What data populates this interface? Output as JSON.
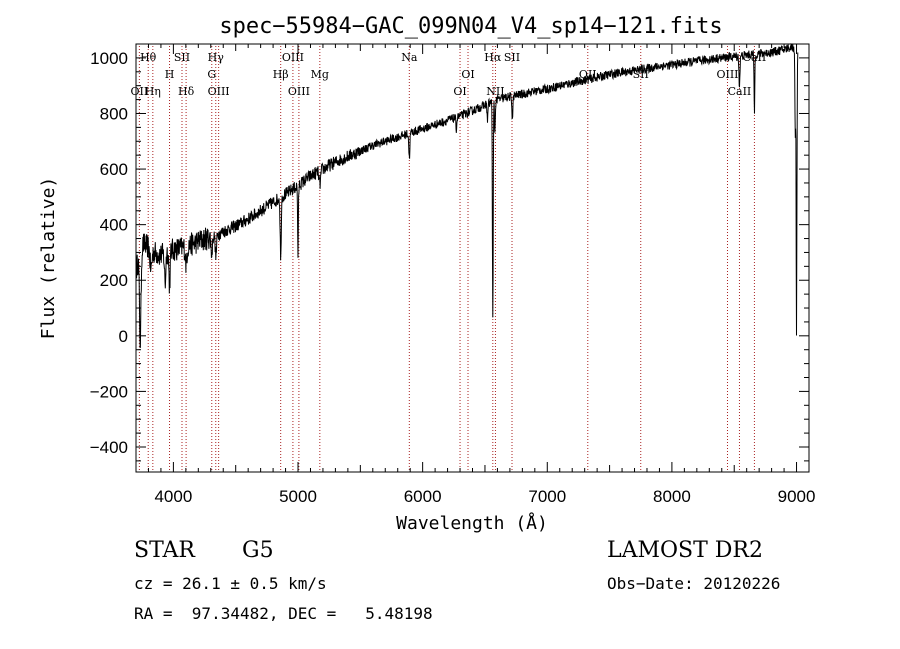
{
  "chart_data": {
    "type": "line",
    "title": "spec−55984−GAC_099N04_V4_sp14−121.fits",
    "xlabel": "Wavelength (Å)",
    "ylabel": "Flux (relative)",
    "xlim": [
      3700,
      9100
    ],
    "ylim": [
      -490,
      1050
    ],
    "x_ticks": [
      4000,
      5000,
      6000,
      7000,
      8000,
      9000
    ],
    "x_tick_labels": [
      "4000",
      "5000",
      "6000",
      "7000",
      "8000",
      "9000"
    ],
    "y_ticks": [
      -400,
      -200,
      0,
      200,
      400,
      600,
      800,
      1000
    ],
    "y_tick_labels": [
      "−400",
      "−200",
      "0",
      "200",
      "400",
      "600",
      "800",
      "1000"
    ],
    "grid": false,
    "line_color": "#000000",
    "marker_color": "#aa2222",
    "spectrum": {
      "continuum": [
        [
          3700,
          230
        ],
        [
          3730,
          300
        ],
        [
          3760,
          330
        ],
        [
          3800,
          320
        ],
        [
          3850,
          300
        ],
        [
          3900,
          290
        ],
        [
          3950,
          300
        ],
        [
          4000,
          310
        ],
        [
          4100,
          320
        ],
        [
          4200,
          340
        ],
        [
          4300,
          355
        ],
        [
          4400,
          375
        ],
        [
          4500,
          395
        ],
        [
          4600,
          420
        ],
        [
          4700,
          450
        ],
        [
          4800,
          480
        ],
        [
          4900,
          510
        ],
        [
          5000,
          540
        ],
        [
          5100,
          575
        ],
        [
          5200,
          600
        ],
        [
          5300,
          625
        ],
        [
          5400,
          645
        ],
        [
          5500,
          665
        ],
        [
          5600,
          685
        ],
        [
          5700,
          700
        ],
        [
          5800,
          715
        ],
        [
          5900,
          730
        ],
        [
          6000,
          745
        ],
        [
          6100,
          760
        ],
        [
          6200,
          775
        ],
        [
          6300,
          790
        ],
        [
          6400,
          810
        ],
        [
          6500,
          830
        ],
        [
          6600,
          850
        ],
        [
          6700,
          860
        ],
        [
          6800,
          870
        ],
        [
          6900,
          880
        ],
        [
          7000,
          888
        ],
        [
          7100,
          900
        ],
        [
          7200,
          910
        ],
        [
          7300,
          920
        ],
        [
          7400,
          930
        ],
        [
          7500,
          940
        ],
        [
          7600,
          948
        ],
        [
          7700,
          955
        ],
        [
          7800,
          962
        ],
        [
          7900,
          970
        ],
        [
          8000,
          975
        ],
        [
          8100,
          982
        ],
        [
          8200,
          988
        ],
        [
          8300,
          995
        ],
        [
          8400,
          1000
        ],
        [
          8500,
          1005
        ],
        [
          8600,
          1010
        ],
        [
          8700,
          1015
        ],
        [
          8800,
          1020
        ],
        [
          8900,
          1030
        ],
        [
          8960,
          1040
        ],
        [
          8990,
          1030
        ]
      ],
      "absorption": [
        {
          "center": 3734,
          "depth": 330,
          "width": 6
        },
        {
          "center": 3820,
          "depth": 70,
          "width": 8
        },
        {
          "center": 3934,
          "depth": 110,
          "width": 5
        },
        {
          "center": 3969,
          "depth": 120,
          "width": 5
        },
        {
          "center": 4102,
          "depth": 60,
          "width": 6
        },
        {
          "center": 4308,
          "depth": 70,
          "width": 5
        },
        {
          "center": 4341,
          "depth": 80,
          "width": 5
        },
        {
          "center": 4861,
          "depth": 230,
          "width": 4
        },
        {
          "center": 5000,
          "depth": 250,
          "width": 3
        },
        {
          "center": 5175,
          "depth": 50,
          "width": 6
        },
        {
          "center": 5893,
          "depth": 90,
          "width": 4
        },
        {
          "center": 6270,
          "depth": 40,
          "width": 4
        },
        {
          "center": 6520,
          "depth": 60,
          "width": 3
        },
        {
          "center": 6563,
          "depth": 800,
          "width": 3
        },
        {
          "center": 6580,
          "depth": 120,
          "width": 3
        },
        {
          "center": 6720,
          "depth": 80,
          "width": 4
        },
        {
          "center": 8542,
          "depth": 110,
          "width": 4
        },
        {
          "center": 8662,
          "depth": 210,
          "width": 3
        },
        {
          "center": 8990,
          "depth": 320,
          "width": 3
        },
        {
          "center": 9000,
          "depth": 1030,
          "width": 3
        }
      ],
      "noise_amplitude": 18
    },
    "lines": [
      {
        "label": "Hθ",
        "wavelength": 3798,
        "row": 0
      },
      {
        "label": "SII",
        "wavelength": 4069,
        "row": 0
      },
      {
        "label": "Hγ",
        "wavelength": 4340,
        "row": 0
      },
      {
        "label": "OIII",
        "wavelength": 4959,
        "row": 0
      },
      {
        "label": "Na",
        "wavelength": 5893,
        "row": 0
      },
      {
        "label": "Hα",
        "wavelength": 6563,
        "row": 0
      },
      {
        "label": "SII",
        "wavelength": 6717,
        "row": 0
      },
      {
        "label": "CaII",
        "wavelength": 8662,
        "row": 0
      },
      {
        "label": "H",
        "wavelength": 3969,
        "row": 1
      },
      {
        "label": "G",
        "wavelength": 4308,
        "row": 1
      },
      {
        "label": "Hβ",
        "wavelength": 4861,
        "row": 1
      },
      {
        "label": "Mg",
        "wavelength": 5175,
        "row": 1
      },
      {
        "label": "OI",
        "wavelength": 6364,
        "row": 1
      },
      {
        "label": "OII",
        "wavelength": 7325,
        "row": 1
      },
      {
        "label": "SII",
        "wavelength": 7750,
        "row": 1
      },
      {
        "label": "OIII",
        "wavelength": 8446,
        "row": 1
      },
      {
        "label": "OII",
        "wavelength": 3727,
        "row": 2
      },
      {
        "label": "Hη",
        "wavelength": 3835,
        "row": 2
      },
      {
        "label": "Hδ",
        "wavelength": 4102,
        "row": 2
      },
      {
        "label": "OIII",
        "wavelength": 4363,
        "row": 2
      },
      {
        "label": "OIII",
        "wavelength": 5007,
        "row": 2
      },
      {
        "label": "OI",
        "wavelength": 6300,
        "row": 2
      },
      {
        "label": "NII",
        "wavelength": 6584,
        "row": 2
      },
      {
        "label": "CaII",
        "wavelength": 8542,
        "row": 2
      }
    ]
  },
  "info": {
    "object_class": "STAR",
    "object_subclass": "G5",
    "survey": "LAMOST DR2",
    "cz": "cz = 26.1 ± 0.5 km/s",
    "obs_date": "Obs−Date: 20120226",
    "coords": "RA =  97.34482, DEC =   5.48198"
  }
}
